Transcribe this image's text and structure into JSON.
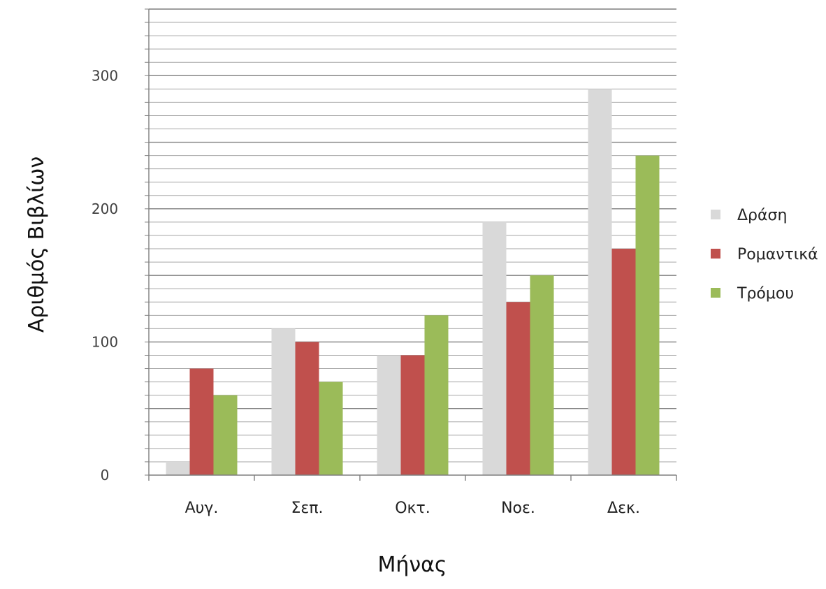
{
  "chart_data": {
    "type": "bar",
    "title": "",
    "xlabel": "Μήνας",
    "ylabel": "Αριθμός Βιβλίων",
    "categories": [
      "Αυγ.",
      "Σεπ.",
      "Οκτ.",
      "Νοε.",
      "Δεκ."
    ],
    "series": [
      {
        "name": "Δράση",
        "color": "#d9d9d9",
        "values": [
          10,
          110,
          90,
          190,
          290
        ]
      },
      {
        "name": "Ρομαντικά",
        "color": "#c0504d",
        "values": [
          80,
          100,
          90,
          130,
          170
        ]
      },
      {
        "name": "Τρόμου",
        "color": "#9bbb59",
        "values": [
          60,
          70,
          120,
          150,
          240
        ]
      }
    ],
    "ylim": [
      0,
      350
    ],
    "yticks": [
      0,
      100,
      200,
      300
    ],
    "grid": true,
    "legend_position": "right"
  }
}
